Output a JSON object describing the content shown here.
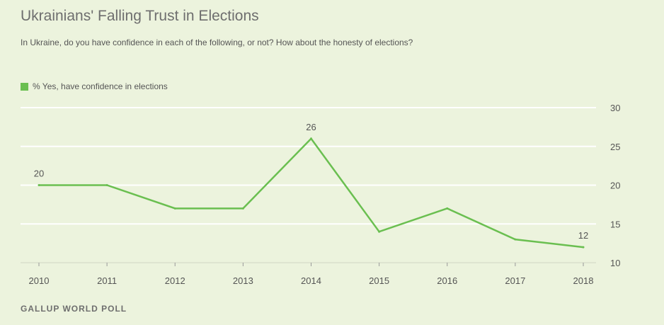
{
  "header": {
    "title": "Ukrainians' Falling Trust in Elections",
    "subtitle": "In Ukraine, do you have confidence in each of the following, or not? How about the honesty of elections?"
  },
  "legend": {
    "label": "% Yes, have confidence in elections",
    "color": "#6abf50"
  },
  "footer": {
    "source": "GALLUP WORLD POLL"
  },
  "chart_data": {
    "type": "line",
    "title": "Ukrainians' Falling Trust in Elections",
    "subtitle": "In Ukraine, do you have confidence in each of the following, or not? How about the honesty of elections?",
    "xlabel": "",
    "ylabel": "",
    "x": [
      "2010",
      "2011",
      "2012",
      "2013",
      "2014",
      "2015",
      "2016",
      "2017",
      "2018"
    ],
    "series": [
      {
        "name": "% Yes, have confidence in elections",
        "color": "#6abf50",
        "values": [
          20,
          20,
          17,
          17,
          26,
          14,
          17,
          13,
          12
        ]
      }
    ],
    "ylim": [
      10,
      30
    ],
    "yticks": [
      10,
      15,
      20,
      25,
      30
    ],
    "data_labels": [
      {
        "x": "2010",
        "value": "20"
      },
      {
        "x": "2014",
        "value": "26"
      },
      {
        "x": "2018",
        "value": "12"
      }
    ],
    "grid": true,
    "legend_position": "top-left",
    "y_axis_side": "right"
  }
}
